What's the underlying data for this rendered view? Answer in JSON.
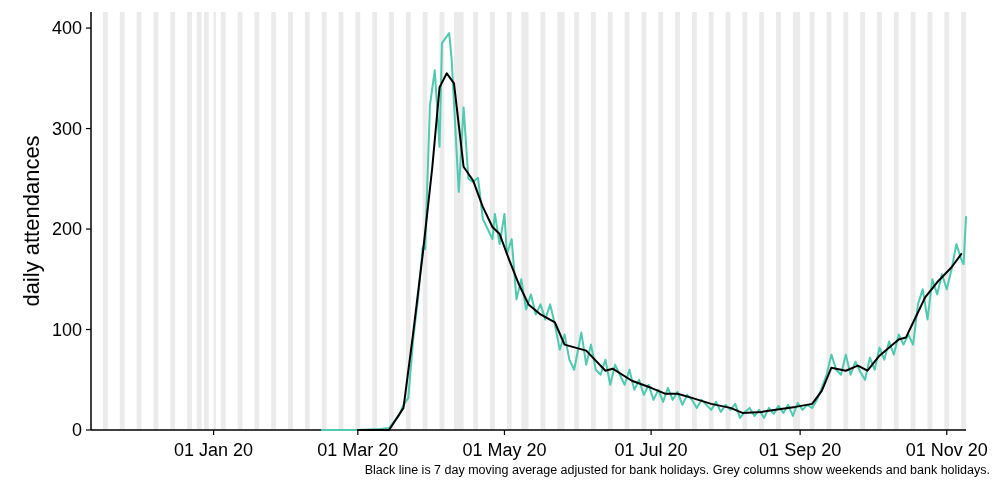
{
  "chart_data": {
    "type": "line",
    "ylabel": "daily attendances",
    "xlim": [
      "2019-11-11",
      "2020-11-09"
    ],
    "xticks": [
      {
        "value": "2020-01-01",
        "label": "01 Jan 20"
      },
      {
        "value": "2020-03-01",
        "label": "01 Mar 20"
      },
      {
        "value": "2020-05-01",
        "label": "01 May 20"
      },
      {
        "value": "2020-07-01",
        "label": "01 Jul 20"
      },
      {
        "value": "2020-09-01",
        "label": "01 Sep 20"
      },
      {
        "value": "2020-11-01",
        "label": "01 Nov 20"
      }
    ],
    "ylim": [
      0,
      416
    ],
    "yticks": [
      0,
      100,
      200,
      300,
      400
    ],
    "annotations": [
      "Black line is 7 day moving average adjusted for bank holidays. Grey columns show weekends and bank holidays."
    ],
    "series": [
      {
        "color": "#4fc9b0",
        "x": [
          "2020-02-15",
          "2020-03-01",
          "2020-03-10",
          "2020-03-14",
          "2020-03-18",
          "2020-03-20",
          "2020-03-22",
          "2020-03-24",
          "2020-03-26",
          "2020-03-28",
          "2020-03-29",
          "2020-03-31",
          "2020-04-02",
          "2020-04-04",
          "2020-04-05",
          "2020-04-08",
          "2020-04-09",
          "2020-04-12",
          "2020-04-14",
          "2020-04-16",
          "2020-04-18",
          "2020-04-20",
          "2020-04-22",
          "2020-04-24",
          "2020-04-26",
          "2020-04-27",
          "2020-04-29",
          "2020-05-01",
          "2020-05-02",
          "2020-05-04",
          "2020-05-06",
          "2020-05-08",
          "2020-05-10",
          "2020-05-12",
          "2020-05-14",
          "2020-05-16",
          "2020-05-18",
          "2020-05-20",
          "2020-05-22",
          "2020-05-24",
          "2020-05-26",
          "2020-05-28",
          "2020-05-30",
          "2020-06-02",
          "2020-06-04",
          "2020-06-06",
          "2020-06-08",
          "2020-06-10",
          "2020-06-12",
          "2020-06-14",
          "2020-06-16",
          "2020-06-18",
          "2020-06-20",
          "2020-06-22",
          "2020-06-24",
          "2020-06-26",
          "2020-06-28",
          "2020-06-30",
          "2020-07-02",
          "2020-07-04",
          "2020-07-06",
          "2020-07-08",
          "2020-07-10",
          "2020-07-12",
          "2020-07-14",
          "2020-07-16",
          "2020-07-18",
          "2020-07-20",
          "2020-07-22",
          "2020-07-24",
          "2020-07-26",
          "2020-07-28",
          "2020-07-30",
          "2020-08-01",
          "2020-08-03",
          "2020-08-05",
          "2020-08-07",
          "2020-08-09",
          "2020-08-11",
          "2020-08-13",
          "2020-08-15",
          "2020-08-17",
          "2020-08-19",
          "2020-08-21",
          "2020-08-23",
          "2020-08-25",
          "2020-08-27",
          "2020-08-29",
          "2020-08-31",
          "2020-09-02",
          "2020-09-04",
          "2020-09-06",
          "2020-09-08",
          "2020-09-10",
          "2020-09-12",
          "2020-09-14",
          "2020-09-16",
          "2020-09-18",
          "2020-09-20",
          "2020-09-22",
          "2020-09-24",
          "2020-09-26",
          "2020-09-28",
          "2020-09-30",
          "2020-10-02",
          "2020-10-04",
          "2020-10-06",
          "2020-10-08",
          "2020-10-10",
          "2020-10-12",
          "2020-10-14",
          "2020-10-16",
          "2020-10-18",
          "2020-10-20",
          "2020-10-22",
          "2020-10-24",
          "2020-10-26",
          "2020-10-28",
          "2020-10-30",
          "2020-11-01",
          "2020-11-03",
          "2020-11-05",
          "2020-11-07",
          "2020-11-08",
          "2020-11-09"
        ],
        "values": [
          0,
          0,
          1,
          2,
          14,
          25,
          32,
          90,
          130,
          182,
          180,
          323,
          358,
          282,
          385,
          395,
          370,
          237,
          321,
          250,
          247,
          251,
          210,
          200,
          190,
          215,
          185,
          215,
          175,
          190,
          130,
          150,
          120,
          135,
          115,
          125,
          110,
          125,
          105,
          80,
          95,
          70,
          60,
          97,
          65,
          85,
          60,
          55,
          70,
          45,
          65,
          55,
          45,
          60,
          40,
          50,
          35,
          45,
          30,
          40,
          28,
          42,
          30,
          38,
          25,
          35,
          30,
          22,
          30,
          25,
          20,
          28,
          18,
          25,
          20,
          26,
          12,
          18,
          22,
          14,
          20,
          12,
          22,
          16,
          24,
          17,
          25,
          14,
          27,
          20,
          25,
          22,
          30,
          42,
          55,
          75,
          60,
          55,
          75,
          55,
          68,
          58,
          50,
          72,
          60,
          82,
          70,
          88,
          75,
          95,
          85,
          95,
          85,
          125,
          140,
          110,
          150,
          135,
          155,
          140,
          160,
          185,
          170,
          165,
          212
        ]
      },
      {
        "color": "#000000",
        "x": [
          "2020-03-01",
          "2020-03-14",
          "2020-03-20",
          "2020-03-24",
          "2020-03-28",
          "2020-04-01",
          "2020-04-04",
          "2020-04-07",
          "2020-04-10",
          "2020-04-14",
          "2020-04-18",
          "2020-04-22",
          "2020-04-26",
          "2020-04-29",
          "2020-05-03",
          "2020-05-07",
          "2020-05-11",
          "2020-05-16",
          "2020-05-22",
          "2020-05-26",
          "2020-06-04",
          "2020-06-12",
          "2020-06-15",
          "2020-06-23",
          "2020-07-01",
          "2020-07-07",
          "2020-07-12",
          "2020-07-18",
          "2020-07-26",
          "2020-08-03",
          "2020-08-08",
          "2020-08-16",
          "2020-08-24",
          "2020-08-30",
          "2020-09-06",
          "2020-09-10",
          "2020-09-14",
          "2020-09-20",
          "2020-09-25",
          "2020-09-29",
          "2020-10-04",
          "2020-10-12",
          "2020-10-15",
          "2020-10-19",
          "2020-10-23",
          "2020-10-28",
          "2020-11-03",
          "2020-11-07"
        ],
        "values": [
          0,
          0,
          22,
          96,
          175,
          262,
          341,
          355,
          345,
          262,
          248,
          222,
          202,
          195,
          169,
          145,
          125,
          115,
          107,
          85,
          79,
          59,
          61,
          49,
          42,
          36,
          36,
          32,
          26,
          22,
          17,
          18,
          21,
          23,
          26,
          39,
          62,
          59,
          64,
          59,
          74,
          90,
          92,
          112,
          132,
          147,
          162,
          175
        ]
      }
    ],
    "bands": [
      {
        "axis": "x",
        "from": "2019-11-16",
        "to": "2019-11-18",
        "color": "#ebebeb"
      },
      {
        "axis": "x",
        "from": "2019-11-23",
        "to": "2019-11-25",
        "color": "#ebebeb"
      },
      {
        "axis": "x",
        "from": "2019-11-30",
        "to": "2019-12-02",
        "color": "#ebebeb"
      },
      {
        "axis": "x",
        "from": "2019-12-07",
        "to": "2019-12-09",
        "color": "#ebebeb"
      },
      {
        "axis": "x",
        "from": "2019-12-14",
        "to": "2019-12-16",
        "color": "#ebebeb"
      },
      {
        "axis": "x",
        "from": "2019-12-21",
        "to": "2019-12-23",
        "color": "#ebebeb"
      },
      {
        "axis": "x",
        "from": "2019-12-25",
        "to": "2019-12-27",
        "color": "#ebebeb"
      },
      {
        "axis": "x",
        "from": "2019-12-28",
        "to": "2019-12-30",
        "color": "#ebebeb"
      },
      {
        "axis": "x",
        "from": "2020-01-01",
        "to": "2020-01-02",
        "color": "#ebebeb"
      },
      {
        "axis": "x",
        "from": "2020-01-04",
        "to": "2020-01-06",
        "color": "#ebebeb"
      },
      {
        "axis": "x",
        "from": "2020-01-11",
        "to": "2020-01-13",
        "color": "#ebebeb"
      },
      {
        "axis": "x",
        "from": "2020-01-18",
        "to": "2020-01-20",
        "color": "#ebebeb"
      },
      {
        "axis": "x",
        "from": "2020-01-25",
        "to": "2020-01-27",
        "color": "#ebebeb"
      },
      {
        "axis": "x",
        "from": "2020-02-01",
        "to": "2020-02-03",
        "color": "#ebebeb"
      },
      {
        "axis": "x",
        "from": "2020-02-08",
        "to": "2020-02-10",
        "color": "#ebebeb"
      },
      {
        "axis": "x",
        "from": "2020-02-15",
        "to": "2020-02-17",
        "color": "#ebebeb"
      },
      {
        "axis": "x",
        "from": "2020-02-22",
        "to": "2020-02-24",
        "color": "#ebebeb"
      },
      {
        "axis": "x",
        "from": "2020-02-29",
        "to": "2020-03-02",
        "color": "#ebebeb"
      },
      {
        "axis": "x",
        "from": "2020-03-07",
        "to": "2020-03-09",
        "color": "#ebebeb"
      },
      {
        "axis": "x",
        "from": "2020-03-14",
        "to": "2020-03-16",
        "color": "#ebebeb"
      },
      {
        "axis": "x",
        "from": "2020-03-21",
        "to": "2020-03-23",
        "color": "#ebebeb"
      },
      {
        "axis": "x",
        "from": "2020-03-28",
        "to": "2020-03-30",
        "color": "#ebebeb"
      },
      {
        "axis": "x",
        "from": "2020-04-04",
        "to": "2020-04-06",
        "color": "#ebebeb"
      },
      {
        "axis": "x",
        "from": "2020-04-10",
        "to": "2020-04-14",
        "color": "#ebebeb"
      },
      {
        "axis": "x",
        "from": "2020-04-18",
        "to": "2020-04-20",
        "color": "#ebebeb"
      },
      {
        "axis": "x",
        "from": "2020-04-25",
        "to": "2020-04-27",
        "color": "#ebebeb"
      },
      {
        "axis": "x",
        "from": "2020-05-02",
        "to": "2020-05-04",
        "color": "#ebebeb"
      },
      {
        "axis": "x",
        "from": "2020-05-08",
        "to": "2020-05-11",
        "color": "#ebebeb"
      },
      {
        "axis": "x",
        "from": "2020-05-16",
        "to": "2020-05-18",
        "color": "#ebebeb"
      },
      {
        "axis": "x",
        "from": "2020-05-23",
        "to": "2020-05-26",
        "color": "#ebebeb"
      },
      {
        "axis": "x",
        "from": "2020-05-30",
        "to": "2020-06-01",
        "color": "#ebebeb"
      },
      {
        "axis": "x",
        "from": "2020-06-06",
        "to": "2020-06-08",
        "color": "#ebebeb"
      },
      {
        "axis": "x",
        "from": "2020-06-13",
        "to": "2020-06-15",
        "color": "#ebebeb"
      },
      {
        "axis": "x",
        "from": "2020-06-20",
        "to": "2020-06-22",
        "color": "#ebebeb"
      },
      {
        "axis": "x",
        "from": "2020-06-27",
        "to": "2020-06-29",
        "color": "#ebebeb"
      },
      {
        "axis": "x",
        "from": "2020-07-04",
        "to": "2020-07-06",
        "color": "#ebebeb"
      },
      {
        "axis": "x",
        "from": "2020-07-11",
        "to": "2020-07-13",
        "color": "#ebebeb"
      },
      {
        "axis": "x",
        "from": "2020-07-18",
        "to": "2020-07-20",
        "color": "#ebebeb"
      },
      {
        "axis": "x",
        "from": "2020-07-25",
        "to": "2020-07-27",
        "color": "#ebebeb"
      },
      {
        "axis": "x",
        "from": "2020-08-01",
        "to": "2020-08-03",
        "color": "#ebebeb"
      },
      {
        "axis": "x",
        "from": "2020-08-08",
        "to": "2020-08-10",
        "color": "#ebebeb"
      },
      {
        "axis": "x",
        "from": "2020-08-15",
        "to": "2020-08-17",
        "color": "#ebebeb"
      },
      {
        "axis": "x",
        "from": "2020-08-22",
        "to": "2020-08-24",
        "color": "#ebebeb"
      },
      {
        "axis": "x",
        "from": "2020-08-29",
        "to": "2020-09-01",
        "color": "#ebebeb"
      },
      {
        "axis": "x",
        "from": "2020-09-05",
        "to": "2020-09-07",
        "color": "#ebebeb"
      },
      {
        "axis": "x",
        "from": "2020-09-12",
        "to": "2020-09-14",
        "color": "#ebebeb"
      },
      {
        "axis": "x",
        "from": "2020-09-19",
        "to": "2020-09-21",
        "color": "#ebebeb"
      },
      {
        "axis": "x",
        "from": "2020-09-26",
        "to": "2020-09-28",
        "color": "#ebebeb"
      },
      {
        "axis": "x",
        "from": "2020-10-03",
        "to": "2020-10-05",
        "color": "#ebebeb"
      },
      {
        "axis": "x",
        "from": "2020-10-10",
        "to": "2020-10-12",
        "color": "#ebebeb"
      },
      {
        "axis": "x",
        "from": "2020-10-17",
        "to": "2020-10-19",
        "color": "#ebebeb"
      },
      {
        "axis": "x",
        "from": "2020-10-24",
        "to": "2020-10-26",
        "color": "#ebebeb"
      },
      {
        "axis": "x",
        "from": "2020-10-31",
        "to": "2020-11-02",
        "color": "#ebebeb"
      },
      {
        "axis": "x",
        "from": "2020-11-07",
        "to": "2020-11-09",
        "color": "#ebebeb"
      }
    ]
  }
}
